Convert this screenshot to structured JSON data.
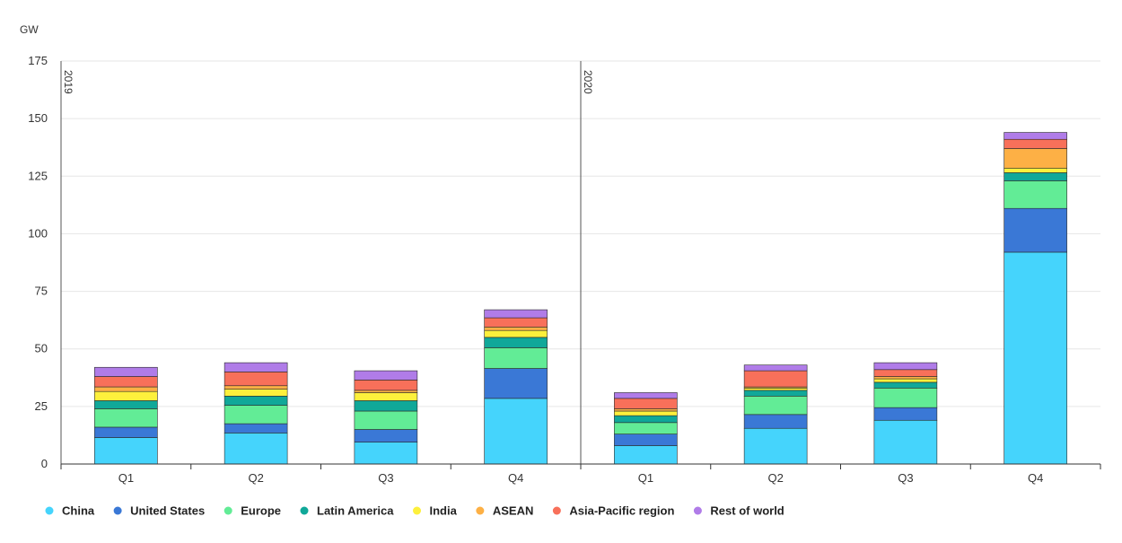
{
  "chart_data": {
    "type": "bar",
    "stacked": true,
    "ylabel": "GW",
    "ylim": [
      0,
      175
    ],
    "yticks": [
      0,
      25,
      50,
      75,
      100,
      125,
      150,
      175
    ],
    "grid": true,
    "legend_position": "bottom",
    "groups": [
      {
        "label": "2019",
        "categories": [
          "Q1",
          "Q2",
          "Q3",
          "Q4"
        ]
      },
      {
        "label": "2020",
        "categories": [
          "Q1",
          "Q2",
          "Q3",
          "Q4"
        ]
      }
    ],
    "series": [
      {
        "name": "China",
        "color": "#45d4fc",
        "values": [
          11.5,
          13.5,
          9.5,
          28.5,
          8,
          15.5,
          19,
          92
        ]
      },
      {
        "name": "United States",
        "color": "#3a78d6",
        "values": [
          4.5,
          4,
          5.5,
          13,
          5,
          6,
          5.5,
          19
        ]
      },
      {
        "name": "Europe",
        "color": "#62ec96",
        "values": [
          8,
          8,
          8,
          9,
          5,
          8,
          8.5,
          12
        ]
      },
      {
        "name": "Latin America",
        "color": "#10a899",
        "values": [
          3.5,
          4,
          4.5,
          4.5,
          3,
          2.5,
          2.5,
          3.5
        ]
      },
      {
        "name": "India",
        "color": "#fdf03c",
        "values": [
          4,
          3,
          3.5,
          3,
          2,
          1,
          1.5,
          2
        ]
      },
      {
        "name": "ASEAN",
        "color": "#fdb045",
        "values": [
          2,
          1.5,
          1,
          1.5,
          1,
          0.5,
          1,
          8.5
        ]
      },
      {
        "name": "Asia-Pacific region",
        "color": "#f8705a",
        "values": [
          4.5,
          6,
          4.5,
          4,
          4.5,
          7,
          3,
          4
        ]
      },
      {
        "name": "Rest of world",
        "color": "#b07ce8",
        "values": [
          4,
          4,
          4,
          3.5,
          2.5,
          2.5,
          3,
          3
        ]
      }
    ]
  }
}
